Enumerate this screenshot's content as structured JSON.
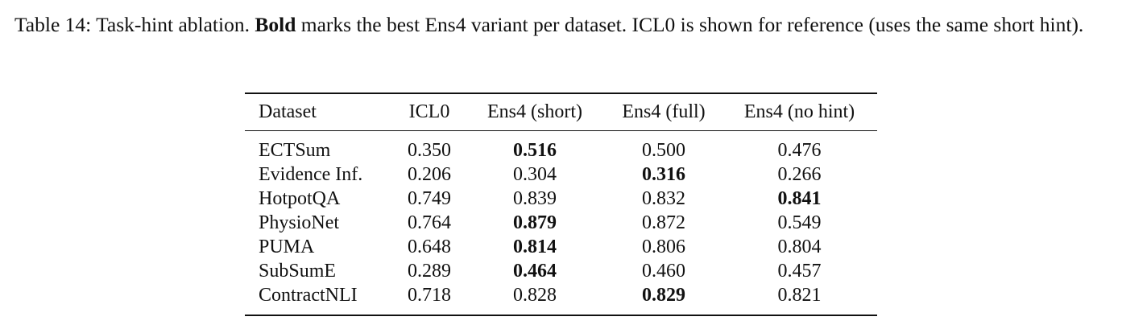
{
  "caption": {
    "before": "Table 14: Task-hint ablation. ",
    "bold": "Bold",
    "after": " marks the best Ens4 variant per dataset. ICL0 is shown for reference (uses the same short hint)."
  },
  "table": {
    "header": [
      "Dataset",
      "ICL0",
      "Ens4 (short)",
      "Ens4 (full)",
      "Ens4 (no hint)"
    ],
    "rows": [
      {
        "cells": [
          "ECTSum",
          "0.350",
          "0.516",
          "0.500",
          "0.476"
        ],
        "bold": 2
      },
      {
        "cells": [
          "Evidence Inf.",
          "0.206",
          "0.304",
          "0.316",
          "0.266"
        ],
        "bold": 3
      },
      {
        "cells": [
          "HotpotQA",
          "0.749",
          "0.839",
          "0.832",
          "0.841"
        ],
        "bold": 4
      },
      {
        "cells": [
          "PhysioNet",
          "0.764",
          "0.879",
          "0.872",
          "0.549"
        ],
        "bold": 2
      },
      {
        "cells": [
          "PUMA",
          "0.648",
          "0.814",
          "0.806",
          "0.804"
        ],
        "bold": 2
      },
      {
        "cells": [
          "SubSumE",
          "0.289",
          "0.464",
          "0.460",
          "0.457"
        ],
        "bold": 2
      },
      {
        "cells": [
          "ContractNLI",
          "0.718",
          "0.828",
          "0.829",
          "0.821"
        ],
        "bold": 3
      }
    ]
  }
}
